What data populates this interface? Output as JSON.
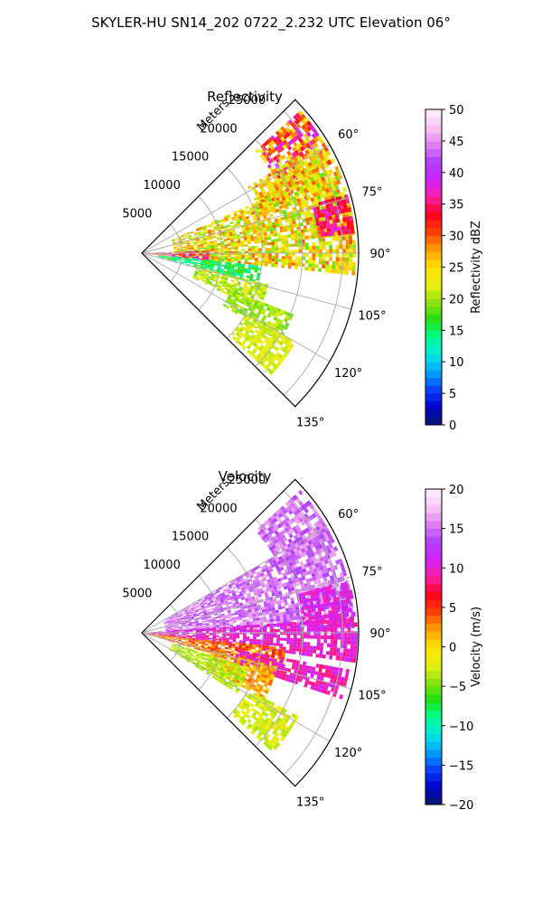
{
  "figure": {
    "title": "SKYLER-HU  SN14_202  0722_2.232 UTC Elevation 06°"
  },
  "colors": {
    "grid": "#b0b0b0",
    "frame": "#000000"
  },
  "chart_data": [
    {
      "type": "heatmap",
      "subtype": "polar-sector",
      "title": "Reflectivity",
      "radial_label": "Meters",
      "radial_ticks": [
        "5000",
        "10000",
        "15000",
        "20000",
        "25000"
      ],
      "radial_tick_values": [
        5000,
        10000,
        15000,
        20000,
        25000
      ],
      "rlim": [
        0,
        27000
      ],
      "angle_ticks": [
        "60°",
        "75°",
        "90°",
        "105°",
        "120°",
        "135°"
      ],
      "angle_tick_values": [
        60,
        75,
        90,
        105,
        120,
        135
      ],
      "theta_range": [
        45,
        135
      ],
      "zero_location": "N",
      "direction": "clockwise",
      "grid": true,
      "colorbar": {
        "label": "Reflectivity dBZ",
        "ticks": [
          "0",
          "5",
          "10",
          "15",
          "20",
          "25",
          "30",
          "35",
          "40",
          "45",
          "50"
        ],
        "range": [
          0,
          50
        ],
        "colormap": [
          "#0a1a6e",
          "#0000c8",
          "#0a40ff",
          "#00a0ff",
          "#00e8e0",
          "#00ff90",
          "#20e010",
          "#90e010",
          "#e8f010",
          "#ffe000",
          "#ffa000",
          "#ff4000",
          "#ff0020",
          "#ff20a0",
          "#d020ff",
          "#b040ff",
          "#e080f0",
          "#f8c8f4",
          "#fff0fc"
        ]
      },
      "echo_regions": [
        {
          "theta": [
            48,
            64
          ],
          "r": [
            19000,
            26500
          ],
          "level": [
            22,
            40
          ]
        },
        {
          "theta": [
            58,
            72
          ],
          "r": [
            15500,
            25500
          ],
          "level": [
            20,
            30
          ]
        },
        {
          "theta": [
            66,
            96
          ],
          "r": [
            4000,
            26500
          ],
          "level": [
            18,
            30
          ]
        },
        {
          "theta": [
            74,
            84
          ],
          "r": [
            22000,
            26500
          ],
          "level": [
            32,
            38
          ]
        },
        {
          "theta": [
            88,
            96
          ],
          "r": [
            0,
            8000
          ],
          "level": [
            28,
            42
          ]
        },
        {
          "theta": [
            96,
            104
          ],
          "r": [
            2000,
            15000
          ],
          "level": [
            12,
            18
          ]
        },
        {
          "theta": [
            104,
            116
          ],
          "r": [
            7000,
            16000
          ],
          "level": [
            18,
            24
          ]
        },
        {
          "theta": [
            112,
            122
          ],
          "r": [
            12000,
            20000
          ],
          "level": [
            18,
            22
          ]
        },
        {
          "theta": [
            120,
            132
          ],
          "r": [
            15000,
            22000
          ],
          "level": [
            20,
            24
          ]
        }
      ]
    },
    {
      "type": "heatmap",
      "subtype": "polar-sector",
      "title": "Velocity",
      "radial_label": "Meters",
      "radial_ticks": [
        "5000",
        "10000",
        "15000",
        "20000",
        "25000"
      ],
      "radial_tick_values": [
        5000,
        10000,
        15000,
        20000,
        25000
      ],
      "rlim": [
        0,
        27000
      ],
      "angle_ticks": [
        "60°",
        "75°",
        "90°",
        "105°",
        "120°",
        "135°"
      ],
      "angle_tick_values": [
        60,
        75,
        90,
        105,
        120,
        135
      ],
      "theta_range": [
        45,
        135
      ],
      "zero_location": "N",
      "direction": "clockwise",
      "grid": true,
      "colorbar": {
        "label": "Velocity (m/s)",
        "ticks": [
          "−20",
          "−15",
          "−10",
          "−5",
          "0",
          "5",
          "10",
          "15",
          "20"
        ],
        "range": [
          -20,
          20
        ],
        "colormap": [
          "#0a1a6e",
          "#0000c8",
          "#0a40ff",
          "#00a0ff",
          "#00e8e0",
          "#00ff90",
          "#20e010",
          "#90e010",
          "#e8f010",
          "#ffe000",
          "#ffa000",
          "#ff4000",
          "#ff0020",
          "#ff20a0",
          "#d020ff",
          "#b040ff",
          "#e080f0",
          "#f8c8f4",
          "#fff0fc"
        ]
      },
      "echo_regions": [
        {
          "theta": [
            48,
            64
          ],
          "r": [
            19000,
            26500
          ],
          "level": [
            13,
            17
          ]
        },
        {
          "theta": [
            60,
            88
          ],
          "r": [
            3000,
            26500
          ],
          "level": [
            13,
            17
          ]
        },
        {
          "theta": [
            76,
            86
          ],
          "r": [
            20000,
            26500
          ],
          "level": [
            9,
            12
          ]
        },
        {
          "theta": [
            86,
            98
          ],
          "r": [
            0,
            26500
          ],
          "level": [
            8,
            12
          ]
        },
        {
          "theta": [
            96,
            106
          ],
          "r": [
            0,
            18000
          ],
          "level": [
            1,
            6
          ]
        },
        {
          "theta": [
            100,
            108
          ],
          "r": [
            12000,
            26000
          ],
          "level": [
            8,
            11
          ]
        },
        {
          "theta": [
            104,
            118
          ],
          "r": [
            9000,
            17000
          ],
          "level": [
            0,
            4
          ]
        },
        {
          "theta": [
            108,
            122
          ],
          "r": [
            4000,
            14000
          ],
          "level": [
            -5,
            -2
          ]
        },
        {
          "theta": [
            118,
            132
          ],
          "r": [
            15000,
            22000
          ],
          "level": [
            -4,
            -1
          ]
        }
      ]
    }
  ]
}
